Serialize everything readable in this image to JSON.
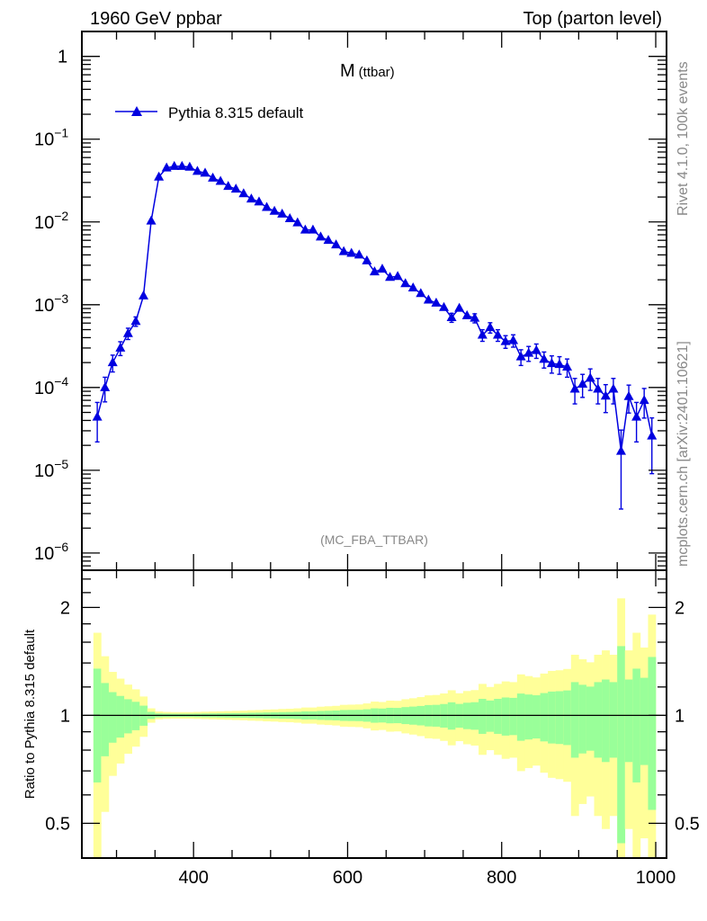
{
  "header": {
    "left": "1960 GeV ppbar",
    "right": "Top (parton level)"
  },
  "side_text": {
    "rivet": "Rivet 4.1.0,  100k events",
    "mcplots": "mcplots.cern.ch [arXiv:2401.10621]"
  },
  "colors": {
    "series": "#0000e0",
    "band_inner": "#99ff99",
    "band_outer": "#ffff99",
    "frame": "#000000",
    "annotation": "#888888"
  },
  "chart_data": [
    {
      "type": "line",
      "title_main": "M",
      "title_sub": "(ttbar)",
      "analysis": "(MC_FBA_TTBAR)",
      "legend": {
        "label": "Pythia 8.315 default",
        "marker": "triangle",
        "placement": "top-left"
      },
      "xlabel": "",
      "ylabel": "",
      "xscale": "linear",
      "yscale": "log",
      "xlim": [
        255,
        1014
      ],
      "ylim": [
        6.2e-07,
        2.0
      ],
      "xticks": [
        {
          "v": 400,
          "label": "400"
        },
        {
          "v": 600,
          "label": "600"
        },
        {
          "v": 800,
          "label": "800"
        },
        {
          "v": 1000,
          "label": "1000"
        }
      ],
      "yticks": [
        {
          "v": 1,
          "base": "1",
          "exp": ""
        },
        {
          "v": 0.1,
          "base": "10",
          "exp": "−1"
        },
        {
          "v": 0.01,
          "base": "10",
          "exp": "−2"
        },
        {
          "v": 0.001,
          "base": "10",
          "exp": "−3"
        },
        {
          "v": 0.0001,
          "base": "10",
          "exp": "−4"
        },
        {
          "v": 1e-05,
          "base": "10",
          "exp": "−5"
        },
        {
          "v": 1e-06,
          "base": "10",
          "exp": "−6"
        }
      ],
      "x": [
        275,
        285,
        295,
        305,
        315,
        325,
        335,
        345,
        355,
        365,
        375,
        385,
        395,
        405,
        415,
        425,
        435,
        445,
        455,
        465,
        475,
        485,
        495,
        505,
        515,
        525,
        535,
        545,
        555,
        565,
        575,
        585,
        595,
        605,
        615,
        625,
        635,
        645,
        655,
        665,
        675,
        685,
        695,
        705,
        715,
        725,
        735,
        745,
        755,
        765,
        775,
        785,
        795,
        805,
        815,
        825,
        835,
        845,
        855,
        865,
        875,
        885,
        895,
        905,
        915,
        925,
        935,
        945,
        955,
        965,
        975,
        985,
        995
      ],
      "series": [
        {
          "name": "Pythia 8.315 default",
          "values": [
            4.4e-05,
            0.0001,
            0.0002,
            0.0003,
            0.00045,
            0.00063,
            0.00128,
            0.0103,
            0.035,
            0.045,
            0.047,
            0.047,
            0.046,
            0.041,
            0.039,
            0.034,
            0.031,
            0.027,
            0.025,
            0.022,
            0.019,
            0.0175,
            0.015,
            0.0135,
            0.0125,
            0.011,
            0.0098,
            0.008,
            0.008,
            0.0066,
            0.006,
            0.0053,
            0.0044,
            0.0042,
            0.004,
            0.0034,
            0.0025,
            0.0027,
            0.00215,
            0.0022,
            0.0018,
            0.0016,
            0.00137,
            0.00114,
            0.00105,
            0.00093,
            0.0007,
            0.00091,
            0.00074,
            0.00069,
            0.00043,
            0.00053,
            0.00043,
            0.00036,
            0.00037,
            0.000235,
            0.00026,
            0.00028,
            0.00022,
            0.000195,
            0.00019,
            0.000177,
            9.6e-05,
            0.00011,
            0.00013,
            9.6e-05,
            7.9e-05,
            9.6e-05,
            1.7e-05,
            7.8e-05,
            4.4e-05,
            7e-05,
            2.6e-05
          ],
          "rel_err": [
            0.5,
            0.33,
            0.23,
            0.19,
            0.156,
            0.13,
            0.092,
            0.033,
            0.018,
            0.016,
            0.015,
            0.015,
            0.015,
            0.016,
            0.017,
            0.018,
            0.019,
            0.02,
            0.021,
            0.022,
            0.024,
            0.025,
            0.027,
            0.028,
            0.03,
            0.031,
            0.033,
            0.037,
            0.037,
            0.041,
            0.043,
            0.045,
            0.05,
            0.051,
            0.052,
            0.057,
            0.066,
            0.064,
            0.071,
            0.07,
            0.078,
            0.083,
            0.089,
            0.098,
            0.1,
            0.108,
            0.125,
            0.109,
            0.121,
            0.126,
            0.16,
            0.143,
            0.16,
            0.174,
            0.17,
            0.215,
            0.205,
            0.197,
            0.22,
            0.236,
            0.24,
            0.248,
            0.34,
            0.31,
            0.29,
            0.34,
            0.37,
            0.34,
            0.8,
            0.37,
            0.5,
            0.39,
            0.65
          ]
        }
      ]
    },
    {
      "type": "area",
      "ylabel": "Ratio to Pythia 8.315 default",
      "yscale": "log",
      "ylim": [
        0.4,
        2.54
      ],
      "xlim": [
        255,
        1014
      ],
      "reference": 1,
      "yticks": [
        {
          "v": 0.5,
          "label": "0.5"
        },
        {
          "v": 1,
          "label": "1"
        },
        {
          "v": 2,
          "label": "2"
        }
      ],
      "xticks": [
        {
          "v": 400,
          "label": "400"
        },
        {
          "v": 600,
          "label": "600"
        },
        {
          "v": 800,
          "label": "800"
        },
        {
          "v": 1000,
          "label": "1000"
        }
      ]
    }
  ]
}
